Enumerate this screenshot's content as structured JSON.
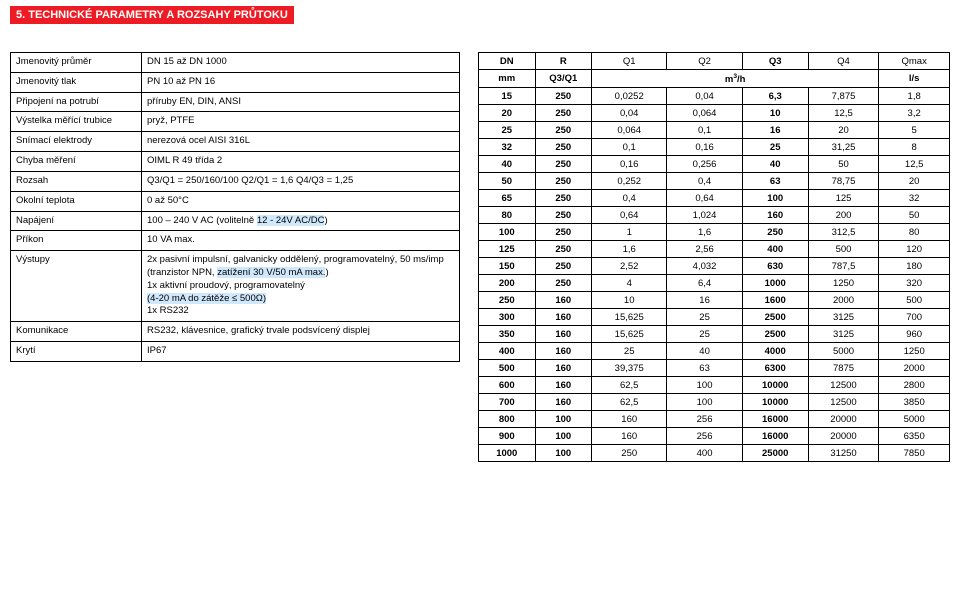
{
  "colors": {
    "title_bg": "#ed1c24",
    "title_fg": "#ffffff",
    "highlight_bg": "#cfe8fc",
    "border": "#000000",
    "text": "#000000",
    "page_bg": "#ffffff"
  },
  "title": "5. TECHNICKÉ PARAMETRY A ROZSAHY PRŮTOKU",
  "spec": {
    "rows": [
      {
        "label": "Jmenovitý průměr",
        "value": "DN 15 až DN 1000"
      },
      {
        "label": "Jmenovitý tlak",
        "value": "PN 10 až PN 16"
      },
      {
        "label": "Připojení na potrubí",
        "value": "příruby EN, DIN, ANSI"
      },
      {
        "label": "Výstelka měřící trubice",
        "value": "pryž, PTFE"
      },
      {
        "label": "Snímací elektrody",
        "value": "nerezová ocel AISI 316L"
      },
      {
        "label": "Chyba měření",
        "value": "OIML R 49 třída 2"
      },
      {
        "label": "Rozsah",
        "value": "Q3/Q1 = 250/160/100  Q2/Q1 = 1,6  Q4/Q3 = 1,25"
      },
      {
        "label": "Okolní teplota",
        "value": "0 až 50°C"
      },
      {
        "label": "Napájení",
        "value_html": "100 – 240 V AC (volitelně <span class=\"hl\">12 - 24V AC/DC</span>)"
      },
      {
        "label": "Příkon",
        "value": "10 VA max."
      },
      {
        "label": "Výstupy",
        "value_html": "2x pasivní impulsní, galvanicky oddělený, programovatelný, 50 ms/imp<br>(tranzistor NPN, <span class=\"hl\">zatížení 30 V/50 mA max.</span>)<br>1x aktivní proudový, programovatelný<br><span class=\"hl\">(4-20 mA do zátěže ≤ 500Ω)</span><br>1x RS232"
      },
      {
        "label": "Komunikace",
        "value": "RS232, klávesnice, grafický trvale podsvícený displej"
      },
      {
        "label": "Krytí",
        "value": "IP67"
      }
    ]
  },
  "flow_table": {
    "header1": [
      "DN",
      "R",
      "Q1",
      "Q2",
      "Q3",
      "Q4",
      "Qmax"
    ],
    "header2_left": "mm",
    "header2_r": "Q3/Q1",
    "header2_mid_html": "m<sup>3</sup>/h",
    "header2_right": "l/s",
    "bold_cols": [
      0,
      1,
      4
    ],
    "col_widths": [
      "12%",
      "12%",
      "16%",
      "16%",
      "14%",
      "15%",
      "15%"
    ],
    "rows": [
      [
        "15",
        "250",
        "0,0252",
        "0,04",
        "6,3",
        "7,875",
        "1,8"
      ],
      [
        "20",
        "250",
        "0,04",
        "0,064",
        "10",
        "12,5",
        "3,2"
      ],
      [
        "25",
        "250",
        "0,064",
        "0,1",
        "16",
        "20",
        "5"
      ],
      [
        "32",
        "250",
        "0,1",
        "0,16",
        "25",
        "31,25",
        "8"
      ],
      [
        "40",
        "250",
        "0,16",
        "0,256",
        "40",
        "50",
        "12,5"
      ],
      [
        "50",
        "250",
        "0,252",
        "0,4",
        "63",
        "78,75",
        "20"
      ],
      [
        "65",
        "250",
        "0,4",
        "0,64",
        "100",
        "125",
        "32"
      ],
      [
        "80",
        "250",
        "0,64",
        "1,024",
        "160",
        "200",
        "50"
      ],
      [
        "100",
        "250",
        "1",
        "1,6",
        "250",
        "312,5",
        "80"
      ],
      [
        "125",
        "250",
        "1,6",
        "2,56",
        "400",
        "500",
        "120"
      ],
      [
        "150",
        "250",
        "2,52",
        "4,032",
        "630",
        "787,5",
        "180"
      ],
      [
        "200",
        "250",
        "4",
        "6,4",
        "1000",
        "1250",
        "320"
      ],
      [
        "250",
        "160",
        "10",
        "16",
        "1600",
        "2000",
        "500"
      ],
      [
        "300",
        "160",
        "15,625",
        "25",
        "2500",
        "3125",
        "700"
      ],
      [
        "350",
        "160",
        "15,625",
        "25",
        "2500",
        "3125",
        "960"
      ],
      [
        "400",
        "160",
        "25",
        "40",
        "4000",
        "5000",
        "1250"
      ],
      [
        "500",
        "160",
        "39,375",
        "63",
        "6300",
        "7875",
        "2000"
      ],
      [
        "600",
        "160",
        "62,5",
        "100",
        "10000",
        "12500",
        "2800"
      ],
      [
        "700",
        "160",
        "62,5",
        "100",
        "10000",
        "12500",
        "3850"
      ],
      [
        "800",
        "100",
        "160",
        "256",
        "16000",
        "20000",
        "5000"
      ],
      [
        "900",
        "100",
        "160",
        "256",
        "16000",
        "20000",
        "6350"
      ],
      [
        "1000",
        "100",
        "250",
        "400",
        "25000",
        "31250",
        "7850"
      ]
    ]
  }
}
